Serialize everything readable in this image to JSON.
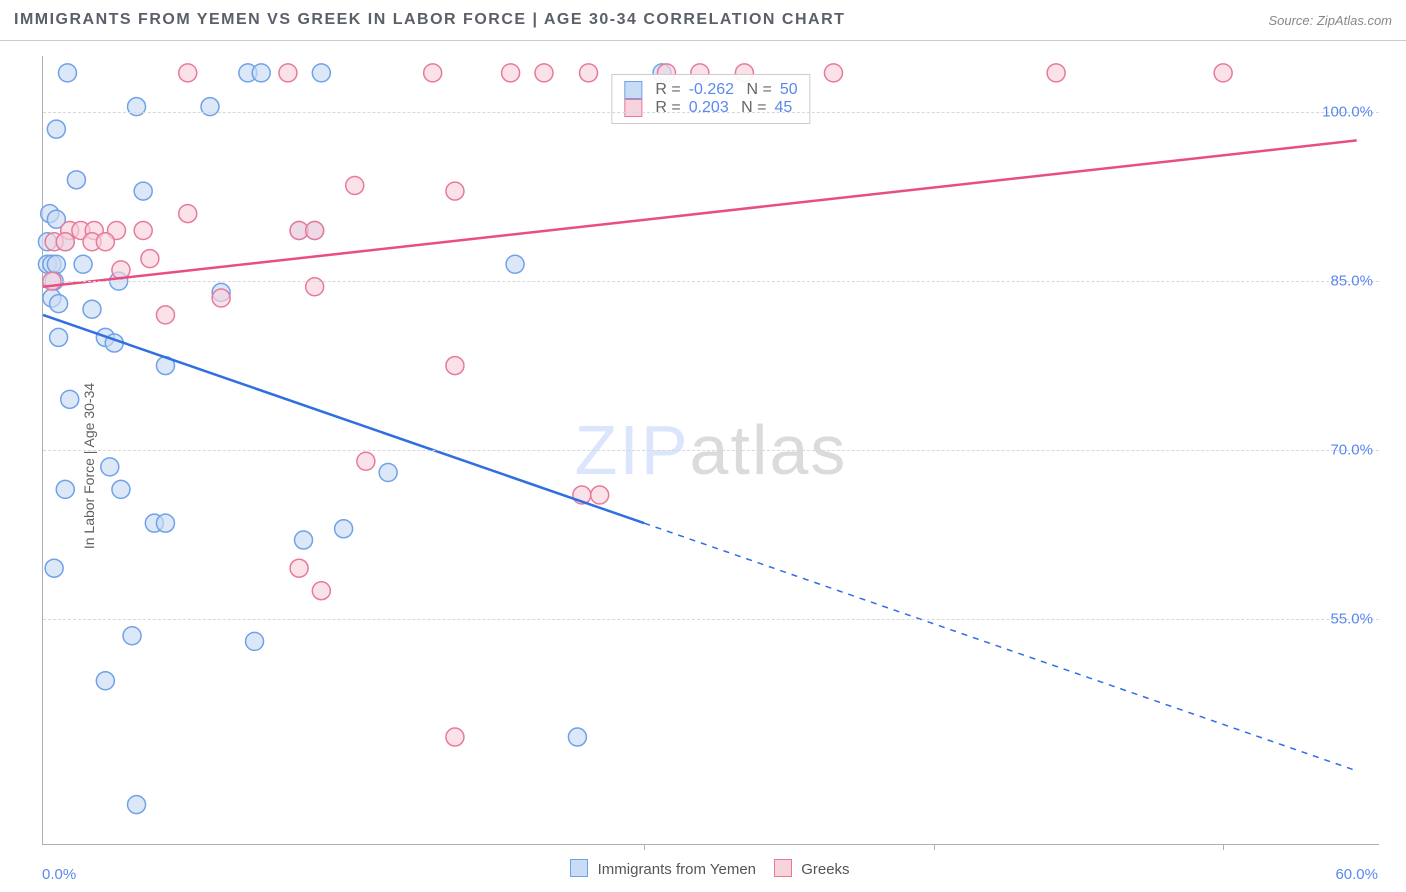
{
  "title": "IMMIGRANTS FROM YEMEN VS GREEK IN LABOR FORCE | AGE 30-34 CORRELATION CHART",
  "source": "Source: ZipAtlas.com",
  "ylabel": "In Labor Force | Age 30-34",
  "watermark_a": "ZIP",
  "watermark_b": "atlas",
  "chart": {
    "type": "scatter",
    "xlim": [
      0,
      60
    ],
    "ylim": [
      35,
      105
    ],
    "yticks": [
      55.0,
      70.0,
      85.0,
      100.0
    ],
    "ytick_labels": [
      "55.0%",
      "70.0%",
      "85.0%",
      "100.0%"
    ],
    "xticks": [
      0,
      60
    ],
    "xtick_labels": [
      "0.0%",
      "60.0%"
    ],
    "vticks_x": [
      27,
      40,
      53
    ],
    "grid_color": "#d8d8d8",
    "background_color": "#ffffff",
    "marker_radius": 9,
    "marker_stroke": 1.5,
    "line_width": 2.5,
    "series": [
      {
        "name": "Immigrants from Yemen",
        "color_fill": "#c9dcf5",
        "color_stroke": "#6fa2e8",
        "line_color": "#2f6fe0",
        "R": "-0.262",
        "N": "50",
        "trend": {
          "x1": 0,
          "y1": 82,
          "x2_solid": 27,
          "y2_solid": 63.5,
          "x2": 59,
          "y2": 41.5
        },
        "points": [
          [
            9.2,
            103.5
          ],
          [
            12.5,
            103.5
          ],
          [
            1.1,
            103.5
          ],
          [
            27.8,
            103.5
          ],
          [
            9.8,
            103.5
          ],
          [
            4.2,
            100.5
          ],
          [
            7.5,
            100.5
          ],
          [
            0.6,
            98.5
          ],
          [
            1.5,
            94
          ],
          [
            4.5,
            93
          ],
          [
            0.3,
            91
          ],
          [
            0.6,
            90.5
          ],
          [
            0.2,
            88.5
          ],
          [
            1.0,
            88.5
          ],
          [
            11.5,
            89.5
          ],
          [
            12.2,
            89.5
          ],
          [
            0.2,
            86.5
          ],
          [
            0.4,
            86.5
          ],
          [
            0.6,
            86.5
          ],
          [
            1.8,
            86.5
          ],
          [
            0.5,
            85
          ],
          [
            3.4,
            85
          ],
          [
            21.2,
            86.5
          ],
          [
            8.0,
            84
          ],
          [
            0.4,
            83.5
          ],
          [
            0.7,
            83
          ],
          [
            2.2,
            82.5
          ],
          [
            2.8,
            80
          ],
          [
            3.2,
            79.5
          ],
          [
            0.7,
            80
          ],
          [
            5.5,
            77.5
          ],
          [
            1.2,
            74.5
          ],
          [
            3.0,
            68.5
          ],
          [
            15.5,
            68
          ],
          [
            1.0,
            66.5
          ],
          [
            3.5,
            66.5
          ],
          [
            5.0,
            63.5
          ],
          [
            5.5,
            63.5
          ],
          [
            11.7,
            62
          ],
          [
            13.5,
            63
          ],
          [
            0.5,
            59.5
          ],
          [
            4.0,
            53.5
          ],
          [
            9.5,
            53
          ],
          [
            2.8,
            49.5
          ],
          [
            24.0,
            44.5
          ],
          [
            4.2,
            38.5
          ]
        ]
      },
      {
        "name": "Greeks",
        "color_fill": "#f7d3dc",
        "color_stroke": "#e77a9b",
        "line_color": "#e84e7f",
        "R": "0.203",
        "N": "45",
        "trend": {
          "x1": 0,
          "y1": 84.5,
          "x2_solid": 59,
          "y2_solid": 97.5,
          "x2": 59,
          "y2": 97.5
        },
        "points": [
          [
            17.5,
            103.5
          ],
          [
            21.0,
            103.5
          ],
          [
            22.5,
            103.5
          ],
          [
            24.5,
            103.5
          ],
          [
            28.0,
            103.5
          ],
          [
            29.5,
            103.5
          ],
          [
            31.5,
            103.5
          ],
          [
            35.5,
            103.5
          ],
          [
            45.5,
            103.5
          ],
          [
            53.0,
            103.5
          ],
          [
            11.0,
            103.5
          ],
          [
            6.5,
            103.5
          ],
          [
            14.0,
            93.5
          ],
          [
            18.5,
            93
          ],
          [
            6.5,
            91
          ],
          [
            1.2,
            89.5
          ],
          [
            1.7,
            89.5
          ],
          [
            2.3,
            89.5
          ],
          [
            3.3,
            89.5
          ],
          [
            4.5,
            89.5
          ],
          [
            0.5,
            88.5
          ],
          [
            1.0,
            88.5
          ],
          [
            2.2,
            88.5
          ],
          [
            2.8,
            88.5
          ],
          [
            11.5,
            89.5
          ],
          [
            12.2,
            89.5
          ],
          [
            3.5,
            86
          ],
          [
            4.8,
            87
          ],
          [
            0.4,
            85
          ],
          [
            8.0,
            83.5
          ],
          [
            5.5,
            82
          ],
          [
            12.2,
            84.5
          ],
          [
            18.5,
            77.5
          ],
          [
            14.5,
            69
          ],
          [
            24.2,
            66
          ],
          [
            25.0,
            66
          ],
          [
            11.5,
            59.5
          ],
          [
            12.5,
            57.5
          ],
          [
            18.5,
            44.5
          ]
        ]
      }
    ]
  },
  "x_legend": {
    "a": "Immigrants from Yemen",
    "b": "Greeks"
  }
}
